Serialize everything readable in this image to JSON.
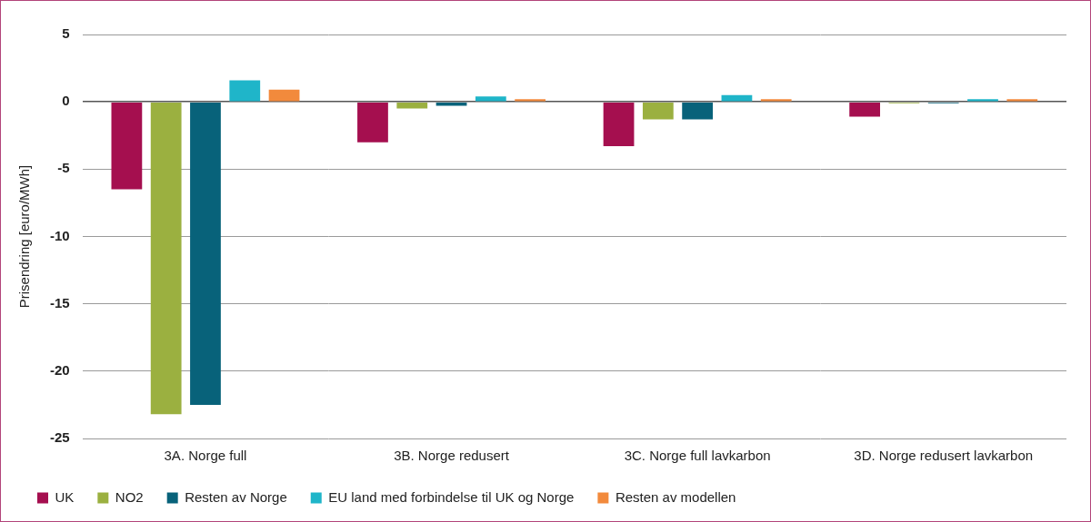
{
  "chart_data": {
    "type": "bar",
    "y_label": "Prisendring [euro/MWh]",
    "categories": [
      "3A. Norge full",
      "3B. Norge redusert",
      "3C. Norge full lavkarbon",
      "3D. Norge redusert lavkarbon"
    ],
    "series": [
      {
        "name": "UK",
        "color": "#a50f4f",
        "values": [
          -6.5,
          -3.0,
          -3.3,
          -1.1
        ]
      },
      {
        "name": "NO2",
        "color": "#9bb040",
        "values": [
          -23.2,
          -0.5,
          -1.3,
          -0.1
        ]
      },
      {
        "name": "Resten av Norge",
        "color": "#08627a",
        "values": [
          -22.5,
          -0.3,
          -1.3,
          -0.1
        ]
      },
      {
        "name": "EU land med forbindelse til UK og Norge",
        "color": "#1fb5c9",
        "values": [
          1.6,
          0.4,
          0.5,
          0.2
        ]
      },
      {
        "name": "Resten av modellen",
        "color": "#f28a3c",
        "values": [
          0.9,
          0.2,
          0.2,
          0.2
        ]
      }
    ],
    "ylim": [
      -25,
      5
    ],
    "yticks": [
      -25,
      -20,
      -15,
      -10,
      -5,
      0,
      5
    ],
    "grid": true,
    "legend": "bottom"
  }
}
